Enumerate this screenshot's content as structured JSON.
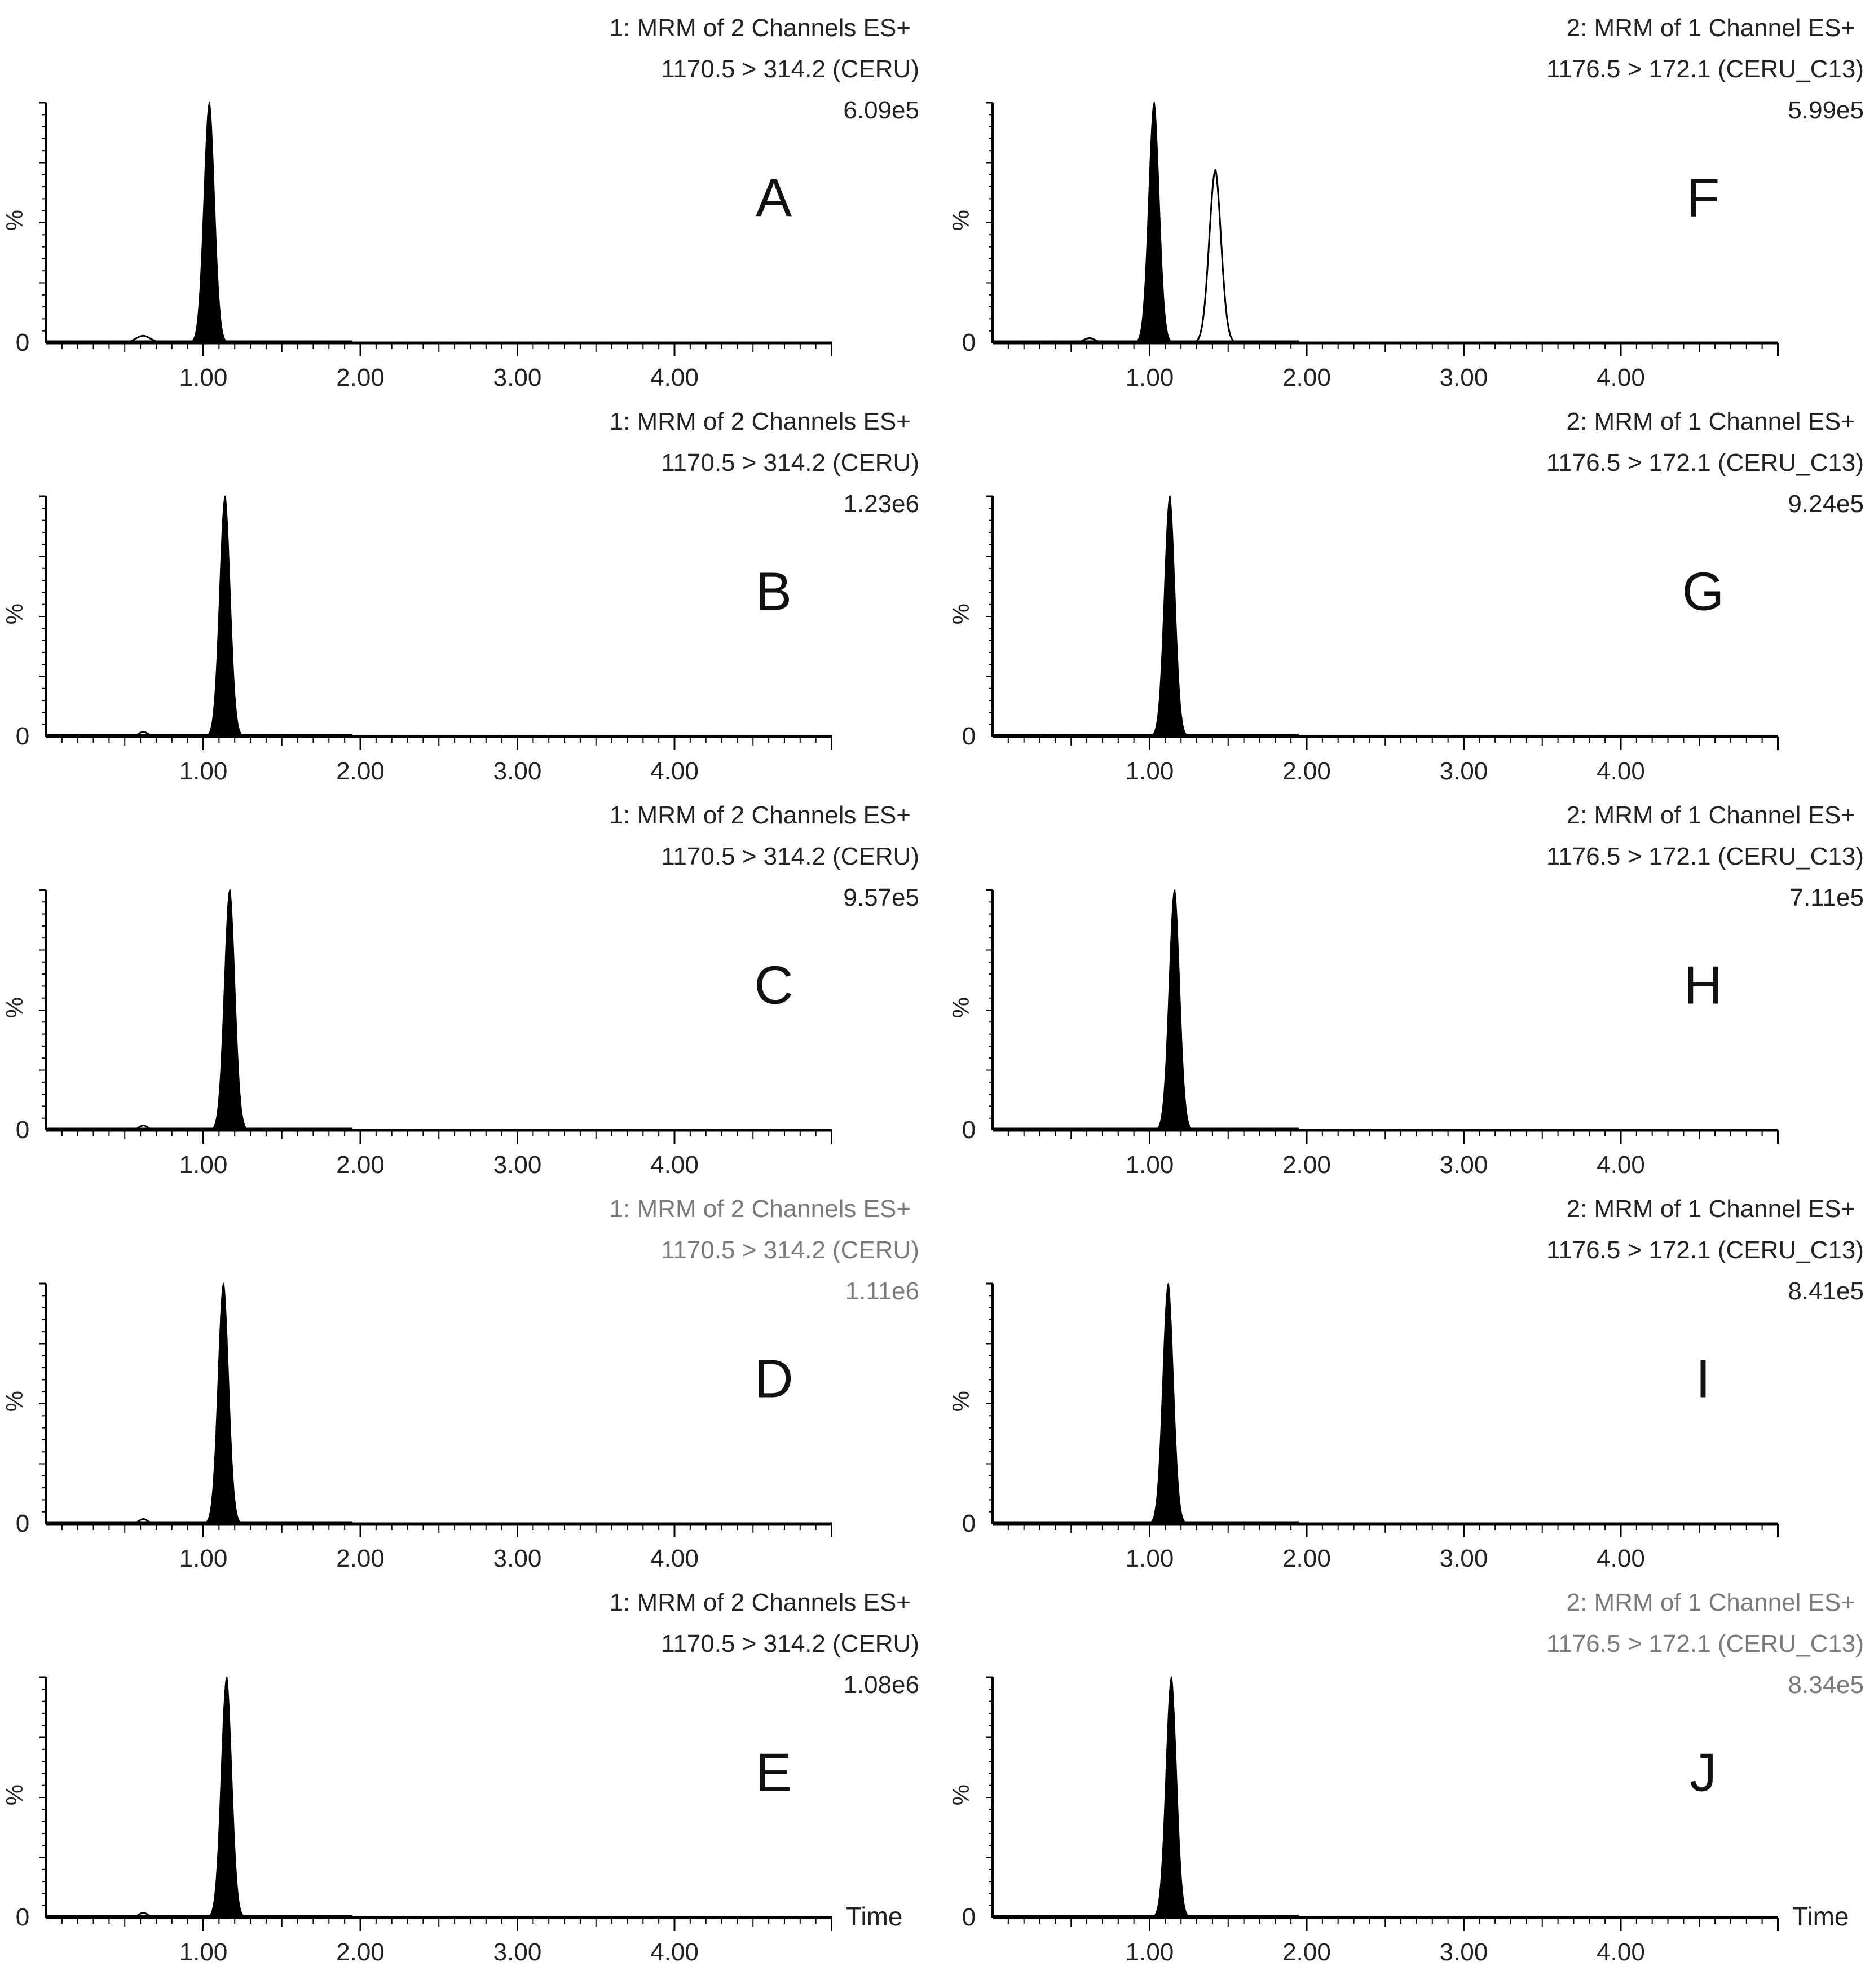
{
  "figure": {
    "left_column": {
      "header_line1": "1: MRM of 2 Channels ES+",
      "header_line2": "1170.5 > 314.2 (CERU)"
    },
    "right_column": {
      "header_line1": "2: MRM of 1 Channel ES+",
      "header_line2": "1176.5 > 172.1 (CERU_C13)"
    },
    "y_axis_label": "%",
    "y_zero_label": "0",
    "x_axis_title": "Time",
    "x_tick_labels": [
      "1.00",
      "2.00",
      "3.00",
      "4.00"
    ],
    "colors": {
      "trace": "#000000",
      "axis": "#000000",
      "light_text": "#7a7a7a",
      "background": "#ffffff"
    }
  },
  "chart_data": [
    {
      "type": "line",
      "panel": "A",
      "column": "left",
      "row": 0,
      "intensity_label": "6.09e5",
      "header_style": "normal",
      "xlim": [
        0,
        5
      ],
      "ylim": [
        0,
        100
      ],
      "xlabel": "Time",
      "ylabel": "%",
      "peaks": [
        {
          "rt": 1.04,
          "height": 100,
          "width": 0.035,
          "filled": true
        },
        {
          "rt": 0.62,
          "height": 3,
          "width": 0.05,
          "filled": false
        }
      ]
    },
    {
      "type": "line",
      "panel": "B",
      "column": "left",
      "row": 1,
      "intensity_label": "1.23e6",
      "header_style": "normal",
      "xlim": [
        0,
        5
      ],
      "ylim": [
        0,
        100
      ],
      "xlabel": "Time",
      "ylabel": "%",
      "peaks": [
        {
          "rt": 1.14,
          "height": 100,
          "width": 0.035,
          "filled": true
        },
        {
          "rt": 0.62,
          "height": 2,
          "width": 0.03,
          "filled": false
        }
      ]
    },
    {
      "type": "line",
      "panel": "C",
      "column": "left",
      "row": 2,
      "intensity_label": "9.57e5",
      "header_style": "normal",
      "xlim": [
        0,
        5
      ],
      "ylim": [
        0,
        100
      ],
      "xlabel": "Time",
      "ylabel": "%",
      "peaks": [
        {
          "rt": 1.17,
          "height": 100,
          "width": 0.035,
          "filled": true
        },
        {
          "rt": 0.62,
          "height": 2,
          "width": 0.03,
          "filled": false
        }
      ]
    },
    {
      "type": "line",
      "panel": "D",
      "column": "left",
      "row": 3,
      "intensity_label": "1.11e6",
      "header_style": "light",
      "xlim": [
        0,
        5
      ],
      "ylim": [
        0,
        100
      ],
      "xlabel": "Time",
      "ylabel": "%",
      "peaks": [
        {
          "rt": 1.13,
          "height": 100,
          "width": 0.035,
          "filled": true
        },
        {
          "rt": 0.62,
          "height": 2,
          "width": 0.03,
          "filled": false
        }
      ]
    },
    {
      "type": "line",
      "panel": "E",
      "column": "left",
      "row": 4,
      "intensity_label": "1.08e6",
      "header_style": "normal",
      "xlim": [
        0,
        5
      ],
      "ylim": [
        0,
        100
      ],
      "xlabel": "Time",
      "ylabel": "%",
      "peaks": [
        {
          "rt": 1.15,
          "height": 100,
          "width": 0.035,
          "filled": true
        },
        {
          "rt": 0.62,
          "height": 2,
          "width": 0.03,
          "filled": false
        }
      ]
    },
    {
      "type": "line",
      "panel": "F",
      "column": "right",
      "row": 0,
      "intensity_label": "5.99e5",
      "header_style": "normal",
      "xlim": [
        0,
        5
      ],
      "ylim": [
        0,
        100
      ],
      "xlabel": "Time",
      "ylabel": "%",
      "peaks": [
        {
          "rt": 1.03,
          "height": 100,
          "width": 0.035,
          "filled": true
        },
        {
          "rt": 1.42,
          "height": 72,
          "width": 0.04,
          "filled": false
        },
        {
          "rt": 0.62,
          "height": 2,
          "width": 0.04,
          "filled": false
        }
      ]
    },
    {
      "type": "line",
      "panel": "G",
      "column": "right",
      "row": 1,
      "intensity_label": "9.24e5",
      "header_style": "normal",
      "xlim": [
        0,
        5
      ],
      "ylim": [
        0,
        100
      ],
      "xlabel": "Time",
      "ylabel": "%",
      "peaks": [
        {
          "rt": 1.13,
          "height": 100,
          "width": 0.035,
          "filled": true
        }
      ]
    },
    {
      "type": "line",
      "panel": "H",
      "column": "right",
      "row": 2,
      "intensity_label": "7.11e5",
      "header_style": "normal",
      "xlim": [
        0,
        5
      ],
      "ylim": [
        0,
        100
      ],
      "xlabel": "Time",
      "ylabel": "%",
      "peaks": [
        {
          "rt": 1.16,
          "height": 100,
          "width": 0.035,
          "filled": true
        }
      ]
    },
    {
      "type": "line",
      "panel": "I",
      "column": "right",
      "row": 3,
      "intensity_label": "8.41e5",
      "header_style": "normal",
      "xlim": [
        0,
        5
      ],
      "ylim": [
        0,
        100
      ],
      "xlabel": "Time",
      "ylabel": "%",
      "peaks": [
        {
          "rt": 1.12,
          "height": 100,
          "width": 0.035,
          "filled": true
        }
      ]
    },
    {
      "type": "line",
      "panel": "J",
      "column": "right",
      "row": 4,
      "intensity_label": "8.34e5",
      "header_style": "light",
      "xlim": [
        0,
        5
      ],
      "ylim": [
        0,
        100
      ],
      "xlabel": "Time",
      "ylabel": "%",
      "peaks": [
        {
          "rt": 1.14,
          "height": 100,
          "width": 0.035,
          "filled": true
        }
      ]
    }
  ]
}
